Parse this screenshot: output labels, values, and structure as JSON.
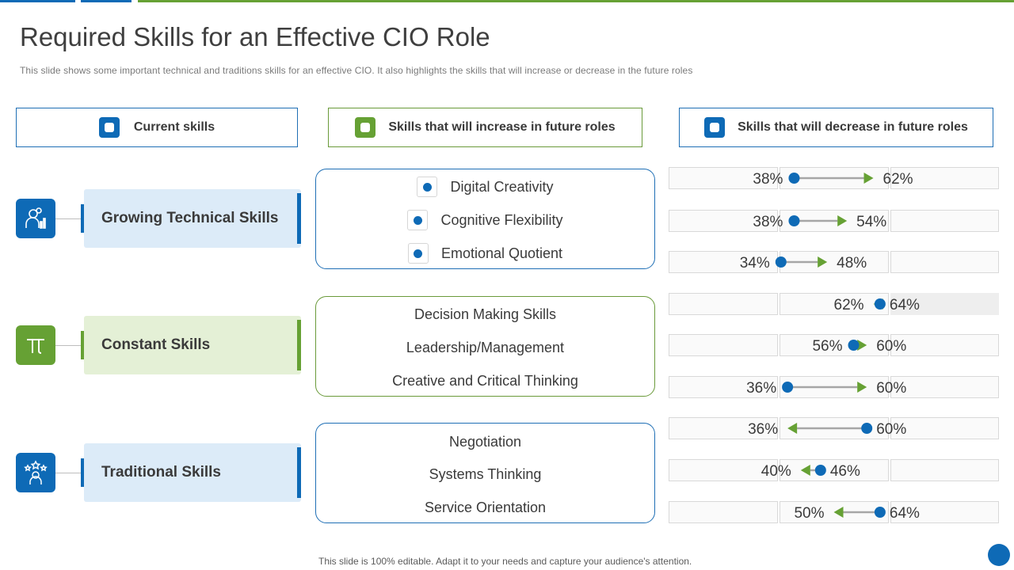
{
  "title": "Required Skills for an Effective CIO Role",
  "subtitle": "This slide shows some important technical and traditions skills for an effective  CIO.  It also highlights the skills that will increase or decrease  in the future  roles",
  "legend": {
    "current": "Current skills",
    "increase": "Skills that will increase in future roles",
    "decrease": "Skills that will decrease in future roles"
  },
  "categories": [
    {
      "label": "Growing Technical Skills",
      "icon": "technical-user-icon",
      "color": "#0e6ab6"
    },
    {
      "label": "Constant Skills",
      "icon": "pi-icon",
      "color": "#66a134"
    },
    {
      "label": "Traditional Skills",
      "icon": "stars-user-icon",
      "color": "#0e6ab6"
    }
  ],
  "skills": [
    [
      "Digital Creativity",
      "Cognitive Flexibility",
      "Emotional Quotient"
    ],
    [
      "Decision Making Skills",
      "Leadership/Management",
      "Creative and Critical Thinking"
    ],
    [
      "Negotiation",
      "Systems Thinking",
      "Service Orientation"
    ]
  ],
  "chart_data": {
    "type": "dumbbell",
    "rows": [
      {
        "skill": "Digital Creativity",
        "current": "38%",
        "future": "62%"
      },
      {
        "skill": "Cognitive Flexibility",
        "current": "38%",
        "future": "54%"
      },
      {
        "skill": "Emotional Quotient",
        "current": "34%",
        "future": "48%"
      },
      {
        "skill": "Decision Making Skills",
        "current": "64%",
        "future": "62%"
      },
      {
        "skill": "Leadership/Management",
        "current": "56%",
        "future": "60%"
      },
      {
        "skill": "Creative and Critical Thinking",
        "current": "36%",
        "future": "60%"
      },
      {
        "skill": "Negotiation",
        "current": "60%",
        "future": "36%"
      },
      {
        "skill": "Systems Thinking",
        "current": "46%",
        "future": "40%"
      },
      {
        "skill": "Service Orientation",
        "current": "64%",
        "future": "50%"
      }
    ]
  },
  "colors": {
    "blue": "#0e6ab6",
    "green": "#66a134",
    "line": "#a6a6a6"
  },
  "footer": "This slide is 100% editable. Adapt it to your needs and capture your audience's attention."
}
